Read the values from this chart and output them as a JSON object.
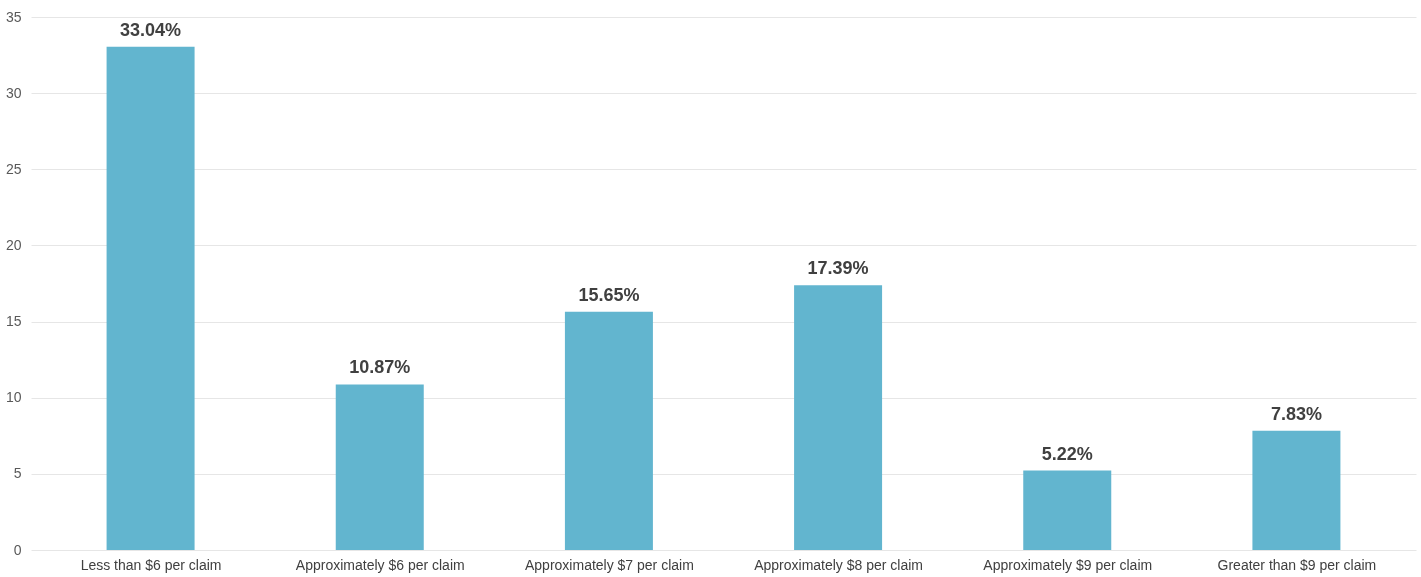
{
  "chart_data": {
    "type": "bar",
    "categories": [
      "Less than $6 per claim",
      "Approximately $6 per claim",
      "Approximately $7 per claim",
      "Approximately $8 per claim",
      "Approximately $9 per claim",
      "Greater than $9 per claim"
    ],
    "values": [
      33.04,
      10.87,
      15.65,
      17.39,
      5.22,
      7.83
    ],
    "value_labels": [
      "33.04%",
      "10.87%",
      "15.65%",
      "17.39%",
      "5.22%",
      "7.83%"
    ],
    "color": "#62b5cf",
    "ylim": [
      0,
      35
    ],
    "yticks": [
      0,
      5,
      10,
      15,
      20,
      25,
      30,
      35
    ],
    "grid": "y"
  }
}
